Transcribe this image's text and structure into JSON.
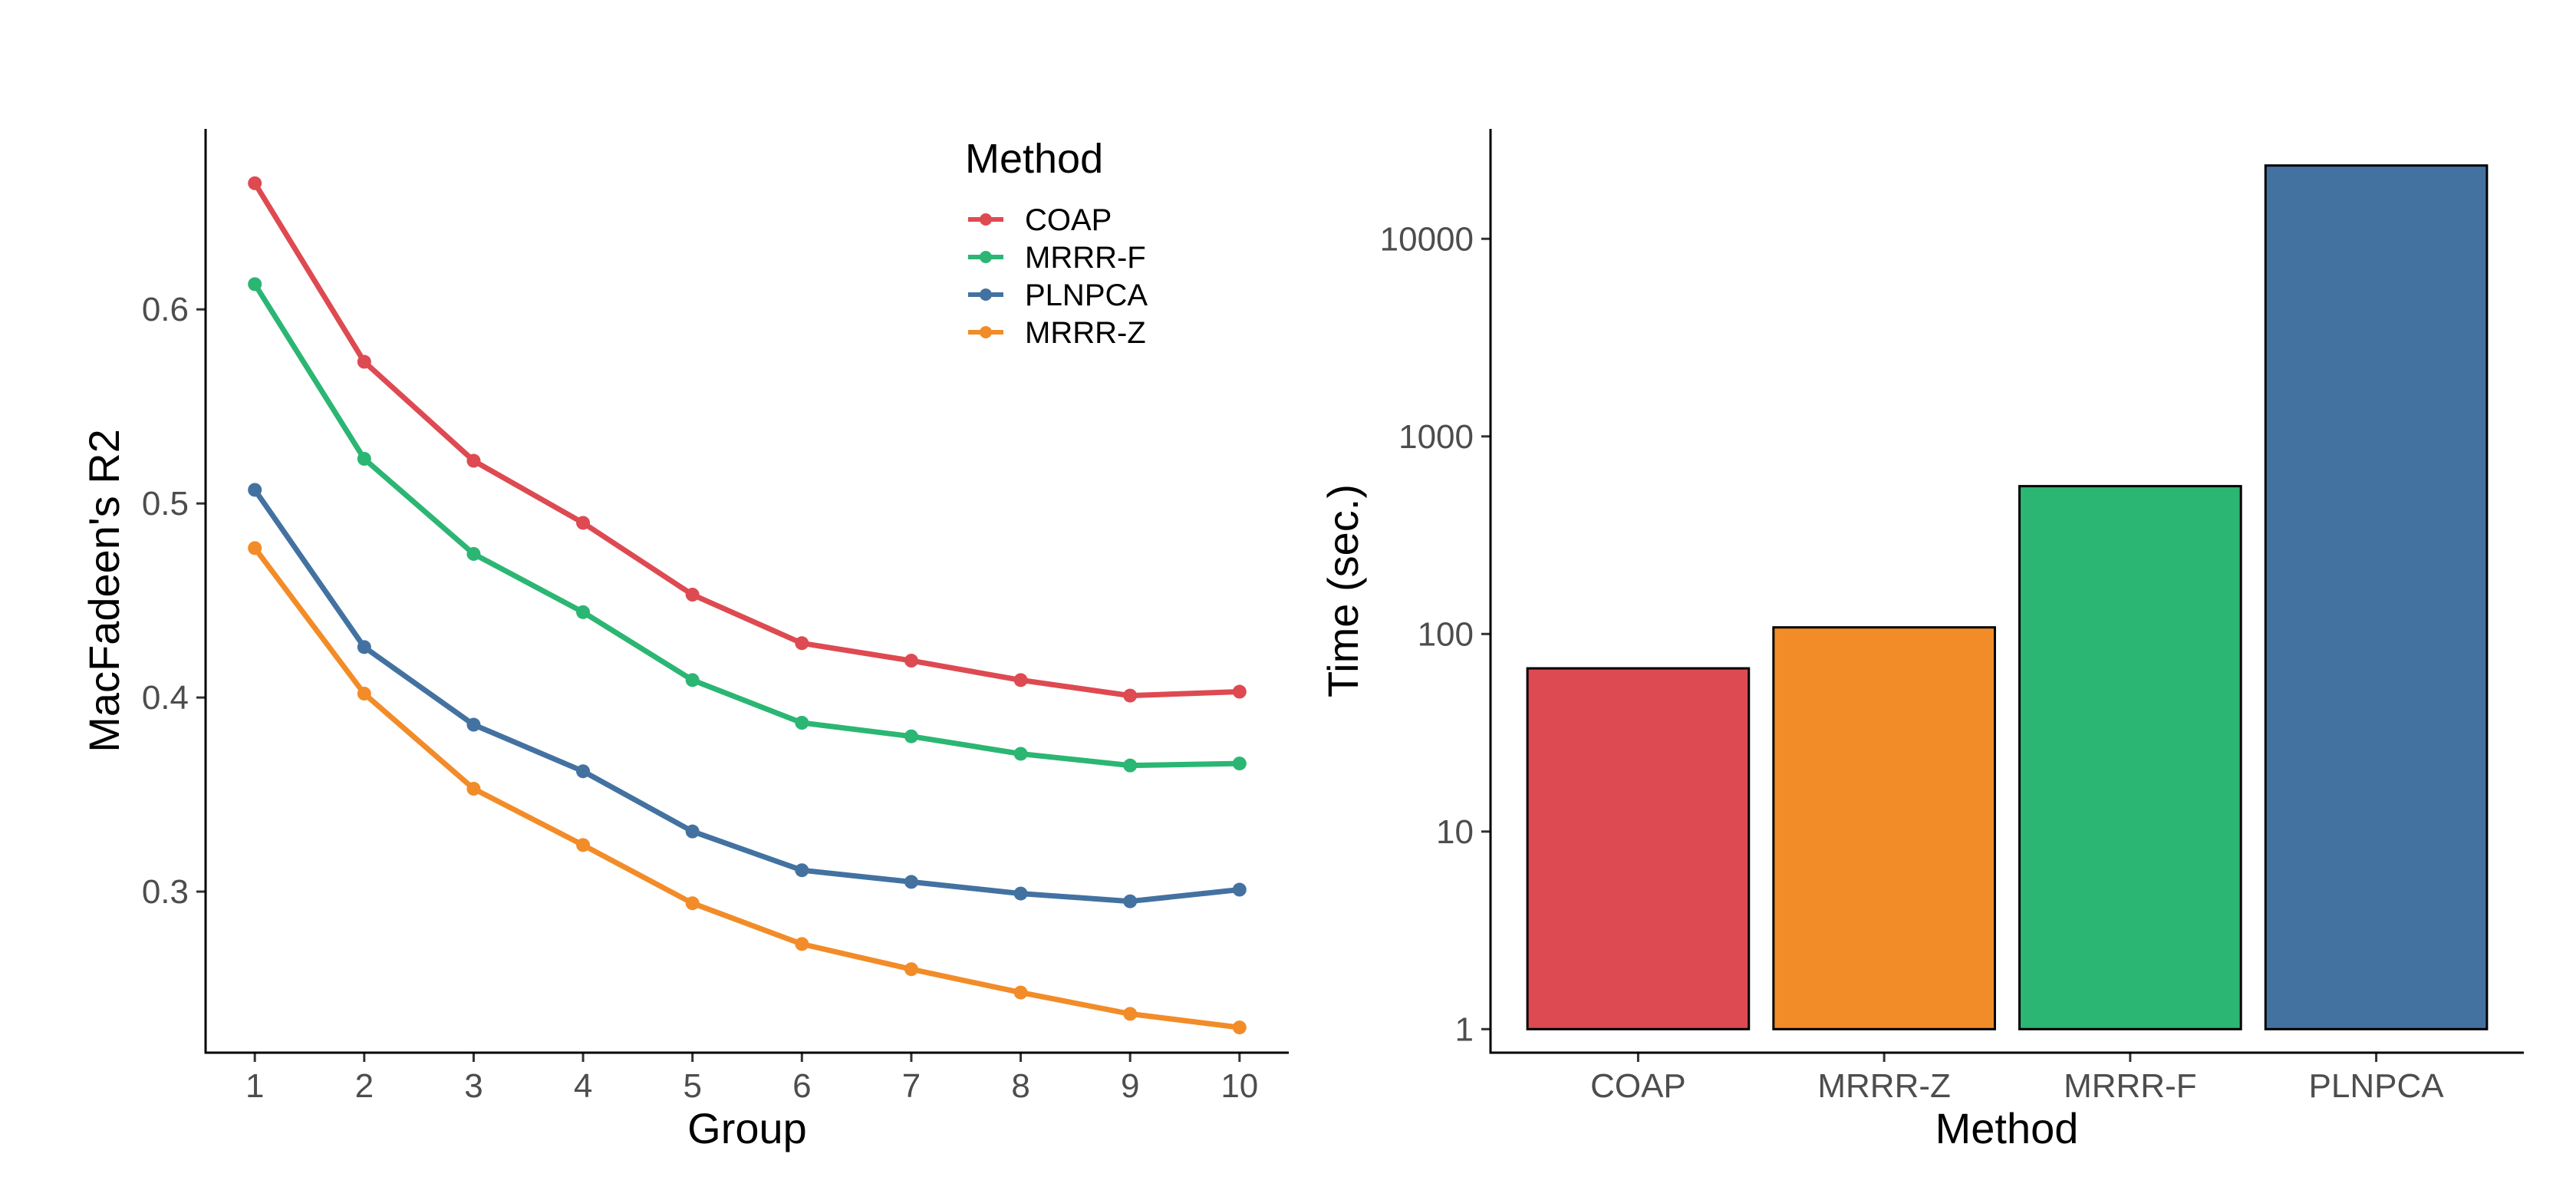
{
  "chart_data": [
    {
      "type": "line",
      "title": "",
      "xlabel": "Group",
      "ylabel": "MacFadeen's R2",
      "x": [
        1,
        2,
        3,
        4,
        5,
        6,
        7,
        8,
        9,
        10
      ],
      "xlim": [
        0.55,
        10.45
      ],
      "ylim": [
        0.217,
        0.693
      ],
      "yticks": [
        0.3,
        0.4,
        0.5,
        0.6
      ],
      "ytick_labels": [
        "0.3",
        "0.4",
        "0.5",
        "0.6"
      ],
      "grid": false,
      "legend": {
        "title": "Method",
        "placement": "top-right inside",
        "entries": [
          "COAP",
          "MRRR-F",
          "PLNPCA",
          "MRRR-Z"
        ]
      },
      "series": [
        {
          "name": "COAP",
          "color": "#DE4A51",
          "values": [
            0.665,
            0.573,
            0.522,
            0.49,
            0.453,
            0.428,
            0.419,
            0.409,
            0.401,
            0.403
          ]
        },
        {
          "name": "MRRR-F",
          "color": "#2BB673",
          "values": [
            0.613,
            0.523,
            0.474,
            0.444,
            0.409,
            0.387,
            0.38,
            0.371,
            0.365,
            0.366
          ]
        },
        {
          "name": "PLNPCA",
          "color": "#4372A1",
          "values": [
            0.507,
            0.426,
            0.386,
            0.362,
            0.331,
            0.311,
            0.305,
            0.299,
            0.295,
            0.301
          ]
        },
        {
          "name": "MRRR-Z",
          "color": "#F28C28",
          "values": [
            0.477,
            0.402,
            0.353,
            0.324,
            0.294,
            0.273,
            0.26,
            0.248,
            0.237,
            0.23
          ]
        }
      ]
    },
    {
      "type": "bar",
      "title": "",
      "xlabel": "Method",
      "ylabel": "Time (sec.)",
      "yscale": "log10",
      "bar_base": 1,
      "ylim": [
        0.76,
        36000
      ],
      "yticks": [
        1,
        10,
        100,
        1000,
        10000
      ],
      "ytick_labels": [
        "1",
        "10",
        "100",
        "1000",
        "10000"
      ],
      "categories": [
        "COAP",
        "MRRR-Z",
        "MRRR-F",
        "PLNPCA"
      ],
      "values": [
        67,
        108,
        560,
        23500
      ],
      "colors": [
        "#DE4A51",
        "#F28C28",
        "#2BB673",
        "#4372A1"
      ],
      "grid": false
    }
  ]
}
